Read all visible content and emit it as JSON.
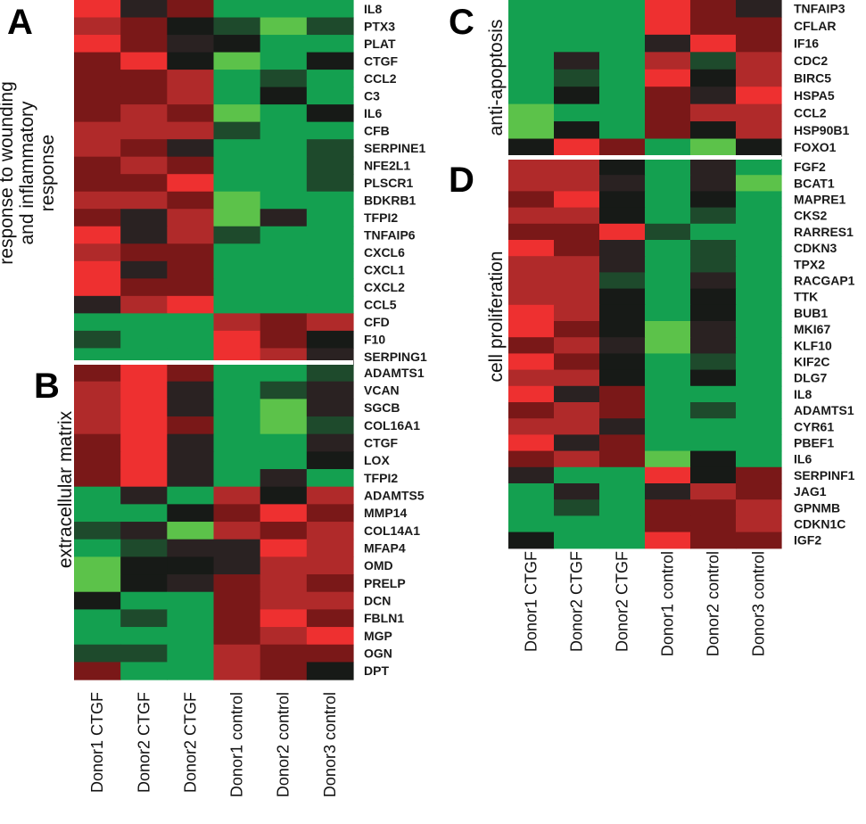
{
  "colors": {
    "hi": "#ee3030",
    "red": "#b02a2a",
    "dred": "#7a1818",
    "dark": "#2a2222",
    "black": "#171a17",
    "dgreen": "#1e4a2c",
    "green": "#14a050",
    "lgreen": "#5cc24a"
  },
  "chart_data": [
    {
      "type": "heatmap",
      "panel": "A",
      "title": "response to wounding and inflammatory response",
      "columns": [
        "Donor1 CTGF",
        "Donor2 CTGF",
        "Donor2 CTGF",
        "Donor1 control",
        "Donor2 control",
        "Donor3 control"
      ],
      "rows": [
        "IL8",
        "PTX3",
        "PLAT",
        "CTGF",
        "CCL2",
        "C3",
        "IL6",
        "CFB",
        "SERPINE1",
        "NFE2L1",
        "PLSCR1",
        "BDKRB1",
        "TFPI2",
        "TNFAIP6",
        "CXCL6",
        "CXCL1",
        "CXCL2",
        "CCL5",
        "CFD",
        "F10",
        "SERPING1"
      ],
      "values": [
        [
          2,
          0.2,
          0.9,
          -1.3,
          -1.5,
          -1.2
        ],
        [
          1.2,
          0.9,
          0.1,
          -0.3,
          -2,
          -0.3
        ],
        [
          1.8,
          0.8,
          0.3,
          -0.1,
          -1.5,
          -1.2
        ],
        [
          0.6,
          2,
          0.1,
          -1.7,
          -1.2,
          0.1
        ],
        [
          1,
          0.9,
          1.2,
          -1.4,
          -0.6,
          -1.1
        ],
        [
          0.5,
          0.7,
          1.2,
          -1.6,
          0.1,
          -1.5
        ],
        [
          0.6,
          1.2,
          0.9,
          -2,
          -0.9,
          -0.1
        ],
        [
          1.5,
          1.2,
          1.2,
          -0.2,
          -1.4,
          -1.3
        ],
        [
          1.5,
          1,
          0.4,
          -1.5,
          -1.4,
          -0.6
        ],
        [
          0.8,
          1.3,
          1,
          -1.5,
          -1.2,
          -0.4
        ],
        [
          0.8,
          1,
          2,
          -1.5,
          -1.4,
          -0.2
        ],
        [
          1.4,
          1.2,
          1,
          -1.8,
          -1.3,
          -0.8
        ],
        [
          0.7,
          0.2,
          1.5,
          -1.8,
          0.3,
          -1.4
        ],
        [
          1.9,
          0.2,
          1.2,
          -0.3,
          -1.3,
          -1.3
        ],
        [
          1.5,
          0.5,
          1,
          -1.3,
          -1.3,
          -1.3
        ],
        [
          1.9,
          0.2,
          0.8,
          -0.9,
          -1.3,
          -1.3
        ],
        [
          1.9,
          0.6,
          0.6,
          -1.4,
          -1.3,
          -1.3
        ],
        [
          0.2,
          1.2,
          2,
          -1.3,
          -1.1,
          -1.1
        ],
        [
          -1.2,
          -0.9,
          -1.6,
          1.3,
          0.8,
          1.1
        ],
        [
          -0.5,
          -1.1,
          -1.1,
          2,
          0.9,
          0.1
        ],
        [
          -1.4,
          -1.6,
          -1.1,
          1.8,
          1.3,
          0.2
        ]
      ]
    },
    {
      "type": "heatmap",
      "panel": "B",
      "title": "extracellular matrix",
      "columns": [
        "Donor1 CTGF",
        "Donor2 CTGF",
        "Donor2 CTGF",
        "Donor1 control",
        "Donor2 control",
        "Donor3 control"
      ],
      "rows": [
        "ADAMTS1",
        "VCAN",
        "SGCB",
        "COL16A1",
        "CTGF",
        "LOX",
        "TFPI2",
        "ADAMTS5",
        "MMP14",
        "COL14A1",
        "MFAP4",
        "OMD",
        "PRELP",
        "DCN",
        "FBLN1",
        "MGP",
        "OGN",
        "DPT"
      ],
      "values": [
        [
          1,
          2,
          0.6,
          -1,
          -1.3,
          -0.4
        ],
        [
          1.2,
          2,
          0.2,
          -1.5,
          -0.3,
          0.2
        ],
        [
          1.5,
          2,
          0.2,
          -1.3,
          -1.7,
          0.2
        ],
        [
          1.2,
          2,
          0.6,
          -1.3,
          -1.7,
          -0.6
        ],
        [
          0.6,
          2,
          0.2,
          -1.6,
          -1.1,
          0.2
        ],
        [
          0.6,
          2,
          0.4,
          -1.6,
          -1.1,
          0.1
        ],
        [
          0.8,
          2,
          0.4,
          -1.6,
          0.2,
          -1.1
        ],
        [
          -1.6,
          0.2,
          -1.3,
          1.7,
          0.1,
          1.3
        ],
        [
          -1.1,
          -1.5,
          -0.1,
          0.6,
          1.8,
          1
        ],
        [
          -0.6,
          0.2,
          -1.9,
          1.1,
          0.8,
          1.3
        ],
        [
          -1.3,
          -0.6,
          0.2,
          0.2,
          1.8,
          1.3
        ],
        [
          -1.9,
          -0.1,
          -0.1,
          0.4,
          1.3,
          1.3
        ],
        [
          -1.9,
          -0.1,
          0.2,
          0.8,
          1.4,
          0.6
        ],
        [
          -0.1,
          -1.3,
          -1.6,
          1,
          1.5,
          1.2
        ],
        [
          -1.6,
          -0.6,
          -1.1,
          1,
          2,
          0.8
        ],
        [
          -1.1,
          -1.3,
          -1.3,
          0.6,
          1.3,
          1.8
        ],
        [
          -0.6,
          -0.6,
          -1.5,
          1.6,
          0.6,
          1
        ],
        [
          0.8,
          -1.6,
          -1.6,
          1.5,
          1,
          0.1
        ]
      ]
    },
    {
      "type": "heatmap",
      "panel": "C",
      "title": "anti-apoptosis",
      "columns": [
        "Donor1 CTGF",
        "Donor2 CTGF",
        "Donor2 CTGF",
        "Donor1 control",
        "Donor2 control",
        "Donor3 control"
      ],
      "rows": [
        "TNFAIP3",
        "CFLAR",
        "IF16",
        "CDC2",
        "BIRC5",
        "HSPA5",
        "CCL2",
        "HSP90B1",
        "FOXO1"
      ],
      "values": [
        [
          -1.1,
          -1.5,
          -1.3,
          2,
          0.7,
          0.2
        ],
        [
          -1.4,
          -1.3,
          -1.6,
          2,
          0.7,
          0.8
        ],
        [
          -1.4,
          -1.1,
          -1.6,
          0.2,
          2,
          1
        ],
        [
          -1.6,
          0.2,
          -1.5,
          1.5,
          -0.4,
          1.2
        ],
        [
          -1.6,
          -0.6,
          -1.4,
          1.8,
          0.1,
          1.2
        ],
        [
          -1.4,
          0.1,
          -1.4,
          0.9,
          0.2,
          2
        ],
        [
          -1.8,
          -1.2,
          -1.1,
          0.9,
          1.3,
          1.4
        ],
        [
          -1.8,
          0.1,
          -1.1,
          0.8,
          0.1,
          1.5
        ],
        [
          0.1,
          2,
          0.6,
          -1.6,
          -1.8,
          0.1
        ]
      ]
    },
    {
      "type": "heatmap",
      "panel": "D",
      "title": "cell proliferation",
      "columns": [
        "Donor1 CTGF",
        "Donor2 CTGF",
        "Donor2 CTGF",
        "Donor1 control",
        "Donor2 control",
        "Donor3 control"
      ],
      "rows": [
        "FGF2",
        "BCAT1",
        "MAPRE1",
        "CKS2",
        "RARRES1",
        "CDKN3",
        "TPX2",
        "RACGAP1",
        "TTK",
        "BUB1",
        "MKI67",
        "KLF10",
        "KIF2C",
        "DLG7",
        "IL8",
        "ADAMTS1",
        "CYR61",
        "PBEF1",
        "IL6",
        "SERPINF1",
        "JAG1",
        "GPNMB",
        "CDKN1C",
        "IGF2"
      ],
      "values": [
        [
          1.2,
          1.2,
          0.1,
          -1.6,
          0.2,
          -1.6
        ],
        [
          1.2,
          1.2,
          0.2,
          -1.5,
          0.2,
          -1.7
        ],
        [
          0.8,
          2,
          0.1,
          -1.5,
          0.1,
          -1.4
        ],
        [
          1.4,
          1.3,
          0.1,
          -1.5,
          -0.3,
          -1.4
        ],
        [
          1,
          0.9,
          2,
          -0.3,
          -1.6,
          -1.4
        ],
        [
          1.8,
          1,
          0.2,
          -1.1,
          -0.5,
          -1.4
        ],
        [
          1.5,
          1.2,
          0.2,
          -1.1,
          -0.3,
          -1.5
        ],
        [
          1.5,
          1.2,
          -0.3,
          -1.6,
          0.2,
          -1.3
        ],
        [
          1.5,
          1.2,
          0.1,
          -1.6,
          0.1,
          -1.6
        ],
        [
          1.9,
          1.2,
          0.1,
          -1.2,
          0.1,
          -1.5
        ],
        [
          1.9,
          1,
          0.1,
          -1.9,
          0.2,
          -1.3
        ],
        [
          0.8,
          1.3,
          0.2,
          -1.9,
          0.2,
          -1.2
        ],
        [
          1.9,
          1,
          0.1,
          -1.1,
          -0.5,
          -1.5
        ],
        [
          1.5,
          1.2,
          0.1,
          -1.6,
          0.1,
          -1.5
        ],
        [
          2,
          0.2,
          0.9,
          -1.3,
          -1.6,
          -1.2
        ],
        [
          0.9,
          1.3,
          0.6,
          -1.3,
          -0.6,
          -1.4
        ],
        [
          1.1,
          1.3,
          0.2,
          -1.3,
          -1.5,
          -1.4
        ],
        [
          2,
          0.2,
          0.9,
          -1.3,
          -1.5,
          -1.5
        ],
        [
          1,
          1.5,
          0.9,
          -1.8,
          0.1,
          -1.1
        ],
        [
          0.2,
          -1.3,
          -1.5,
          2,
          0.1,
          0.6
        ],
        [
          -1.5,
          0.2,
          -1.5,
          0.2,
          1.3,
          0.8
        ],
        [
          -1.5,
          -0.5,
          -1.5,
          0.9,
          1,
          1.2
        ],
        [
          -1.5,
          -1.2,
          -1.3,
          0.8,
          0.9,
          1.2
        ],
        [
          0.1,
          -1.6,
          -1.3,
          2,
          0.6,
          0.5
        ]
      ]
    }
  ]
}
